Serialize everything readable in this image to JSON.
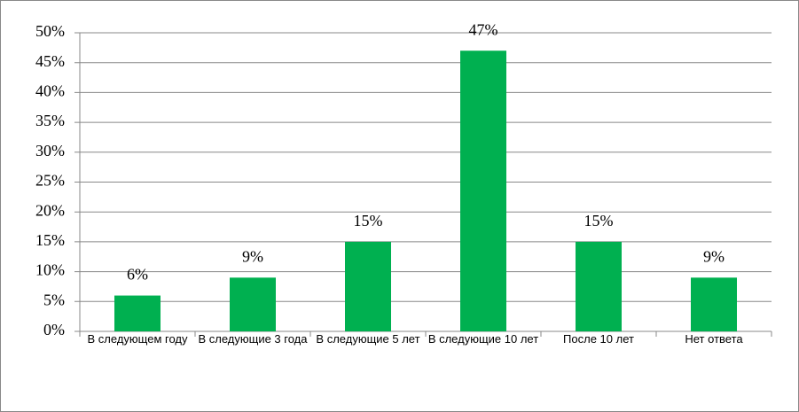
{
  "chart_data": {
    "type": "bar",
    "categories": [
      "В следующем году",
      "В следующие 3 года",
      "В следующие 5 лет",
      "В следующие 10 лет",
      "После 10 лет",
      "Нет ответа"
    ],
    "values": [
      6,
      9,
      15,
      47,
      15,
      9
    ],
    "value_labels": [
      "6%",
      "9%",
      "15%",
      "47%",
      "15%",
      "9%"
    ],
    "color": "#00b050",
    "ylim": [
      0,
      50
    ],
    "yticks": [
      {
        "value": 0,
        "label": "0%"
      },
      {
        "value": 5,
        "label": "5%"
      },
      {
        "value": 10,
        "label": "10%"
      },
      {
        "value": 15,
        "label": "15%"
      },
      {
        "value": 20,
        "label": "20%"
      },
      {
        "value": 25,
        "label": "25%"
      },
      {
        "value": 30,
        "label": "30%"
      },
      {
        "value": 35,
        "label": "35%"
      },
      {
        "value": 40,
        "label": "40%"
      },
      {
        "value": 45,
        "label": "45%"
      },
      {
        "value": 50,
        "label": "50%"
      }
    ],
    "grid": true
  }
}
